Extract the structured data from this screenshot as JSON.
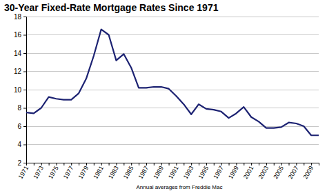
{
  "chart_data": {
    "type": "line",
    "title": "30-Year Fixed-Rate Mortgage Rates Since 1971",
    "xlabel": "Annual averages from Freddie Mac",
    "categories": [
      "1971",
      null,
      "1973",
      null,
      "1975",
      null,
      "1977",
      null,
      "1979",
      null,
      "1981",
      null,
      "1983",
      null,
      "1985",
      null,
      "1987",
      null,
      "1989",
      null,
      "1991",
      null,
      "1993",
      null,
      "1995",
      null,
      "1997",
      null,
      "1999",
      null,
      "2001",
      null,
      "2003",
      null,
      "2005",
      null,
      "2007",
      null,
      "2009",
      null
    ],
    "values": [
      7.5,
      7.4,
      8.0,
      9.2,
      9.0,
      8.9,
      8.9,
      9.6,
      11.2,
      13.7,
      16.6,
      16.0,
      13.2,
      13.9,
      12.4,
      10.2,
      10.2,
      10.3,
      10.3,
      10.1,
      9.3,
      8.4,
      7.3,
      8.4,
      7.9,
      7.8,
      7.6,
      6.9,
      7.4,
      8.1,
      7.0,
      6.5,
      5.8,
      5.8,
      5.9,
      6.4,
      6.3,
      6.0,
      5.0,
      5.0
    ],
    "color": "#1c2272",
    "ylim": [
      2,
      18
    ],
    "yticks": [
      2,
      4,
      6,
      8,
      10,
      12,
      14,
      16,
      18
    ],
    "grid": true
  }
}
